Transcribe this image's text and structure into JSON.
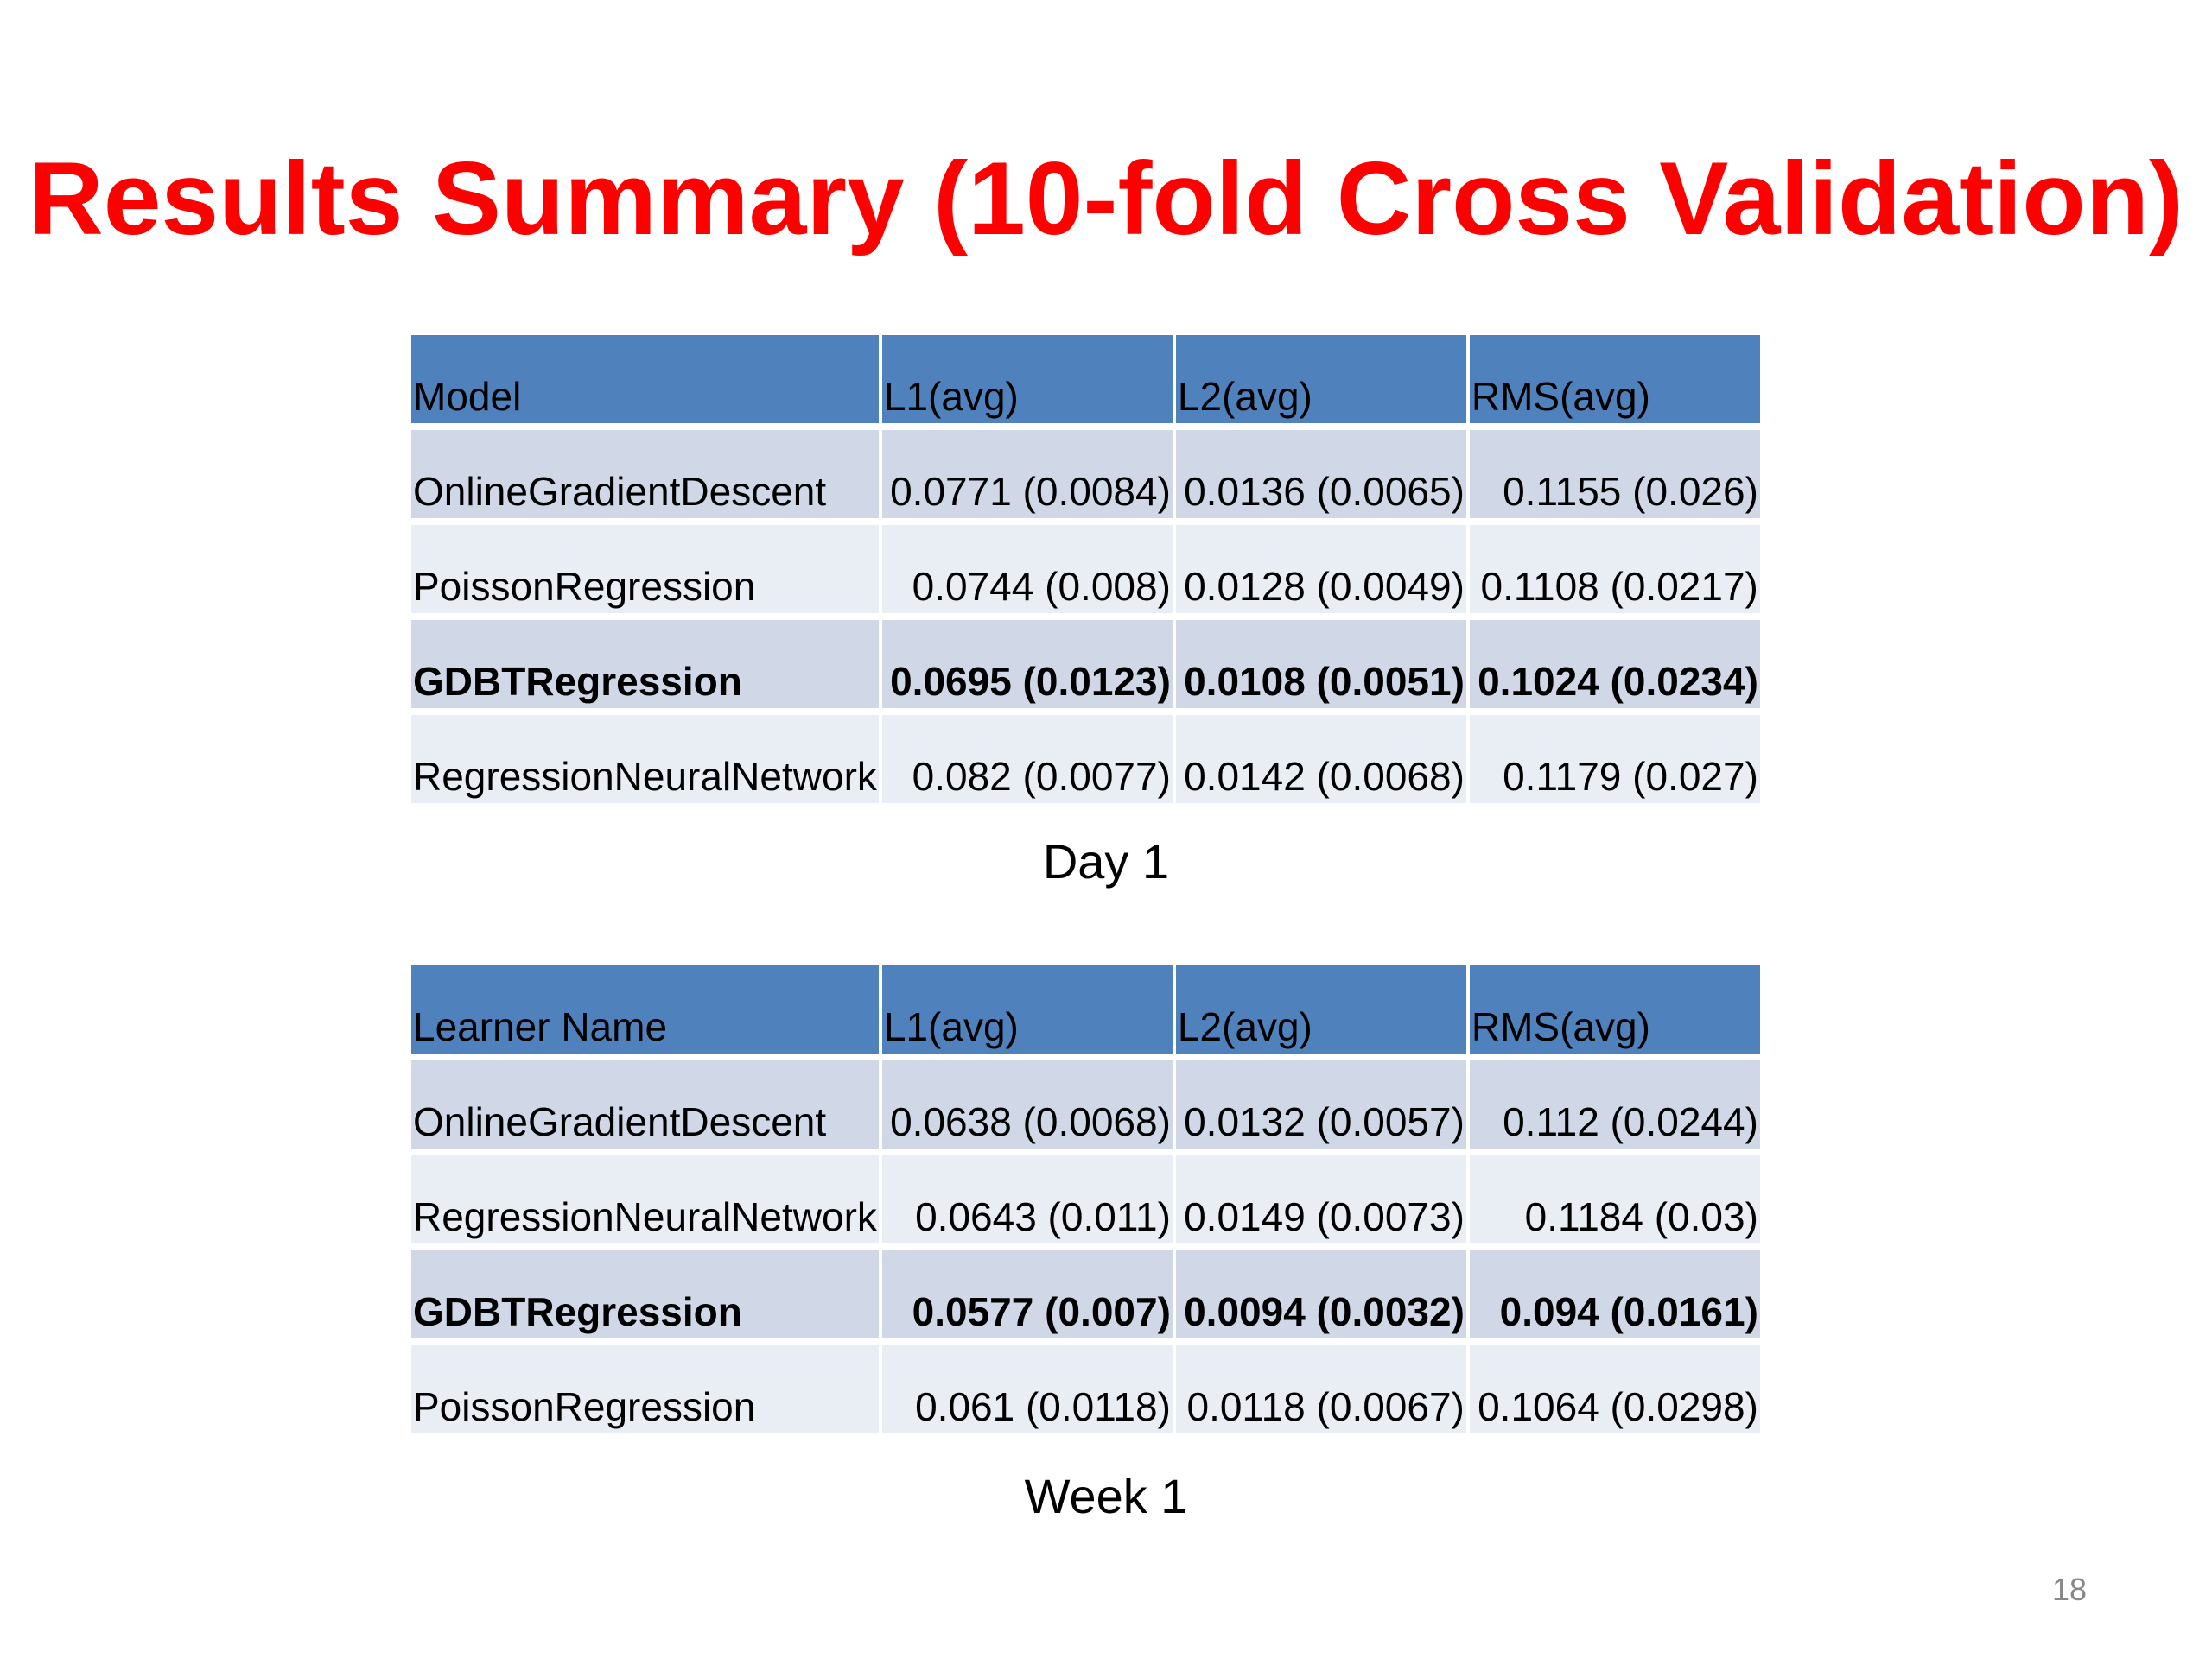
{
  "slide": {
    "title": "Results Summary (10-fold Cross Validation)",
    "page_number": "18"
  },
  "tables": [
    {
      "caption": "Day 1",
      "headers": [
        "Model",
        "L1(avg)",
        "L2(avg)",
        "RMS(avg)"
      ],
      "rows": [
        {
          "name": "OnlineGradientDescent",
          "l1": "0.0771 (0.0084)",
          "l2": "0.0136 (0.0065)",
          "rms": "0.1155 (0.026)"
        },
        {
          "name": "PoissonRegression",
          "l1": "0.0744 (0.008)",
          "l2": "0.0128 (0.0049)",
          "rms": "0.1108 (0.0217)"
        },
        {
          "name": "GDBTRegression",
          "l1": "0.0695 (0.0123)",
          "l2": "0.0108 (0.0051)",
          "rms": "0.1024 (0.0234)"
        },
        {
          "name": "RegressionNeuralNetwork",
          "l1": "0.082 (0.0077)",
          "l2": "0.0142 (0.0068)",
          "rms": "0.1179 (0.027)"
        }
      ]
    },
    {
      "caption": "Week 1",
      "headers": [
        "Learner Name",
        "L1(avg)",
        "L2(avg)",
        "RMS(avg)"
      ],
      "rows": [
        {
          "name": "OnlineGradientDescent",
          "l1": "0.0638 (0.0068)",
          "l2": "0.0132 (0.0057)",
          "rms": "0.112 (0.0244)"
        },
        {
          "name": "RegressionNeuralNetwork",
          "l1": "0.0643 (0.011)",
          "l2": "0.0149 (0.0073)",
          "rms": "0.1184 (0.03)"
        },
        {
          "name": "GDBTRegression",
          "l1": "0.0577 (0.007)",
          "l2": "0.0094 (0.0032)",
          "rms": "0.094 (0.0161)"
        },
        {
          "name": "PoissonRegression",
          "l1": "0.061 (0.0118)",
          "l2": "0.0118 (0.0067)",
          "rms": "0.1064 (0.0298)"
        }
      ]
    }
  ]
}
